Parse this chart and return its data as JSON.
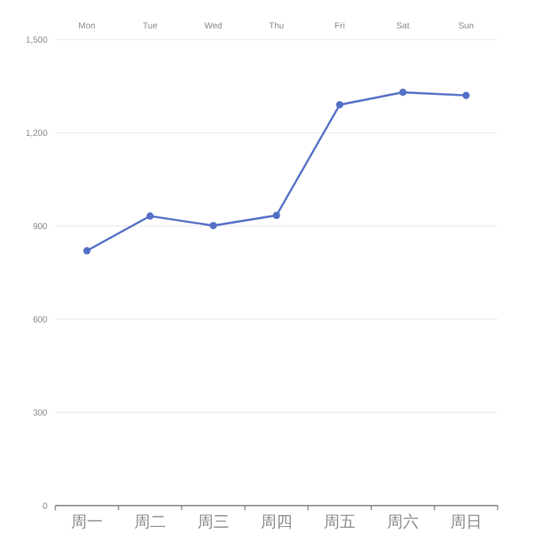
{
  "chart_data": {
    "type": "line",
    "categories": [
      "周一",
      "周二",
      "周三",
      "周四",
      "周五",
      "周六",
      "周日"
    ],
    "annotations": [
      "Mon",
      "Tue",
      "Wed",
      "Thu",
      "Fri",
      "Sat",
      "Sun"
    ],
    "series": [
      {
        "color": "#5470c6",
        "values": [
          820,
          932,
          901,
          934,
          1290,
          1330,
          1320
        ]
      }
    ],
    "ylim": [
      0,
      1500
    ],
    "yticks": [
      {
        "value": 0,
        "label": "0"
      },
      {
        "value": 300,
        "label": "300"
      },
      {
        "value": 600,
        "label": "600"
      },
      {
        "value": 900,
        "label": "900"
      },
      {
        "value": 1200,
        "label": "1,200"
      },
      {
        "value": 1500,
        "label": "1,500"
      }
    ],
    "grid": "y",
    "marker": "circle",
    "line_style": "solid"
  }
}
